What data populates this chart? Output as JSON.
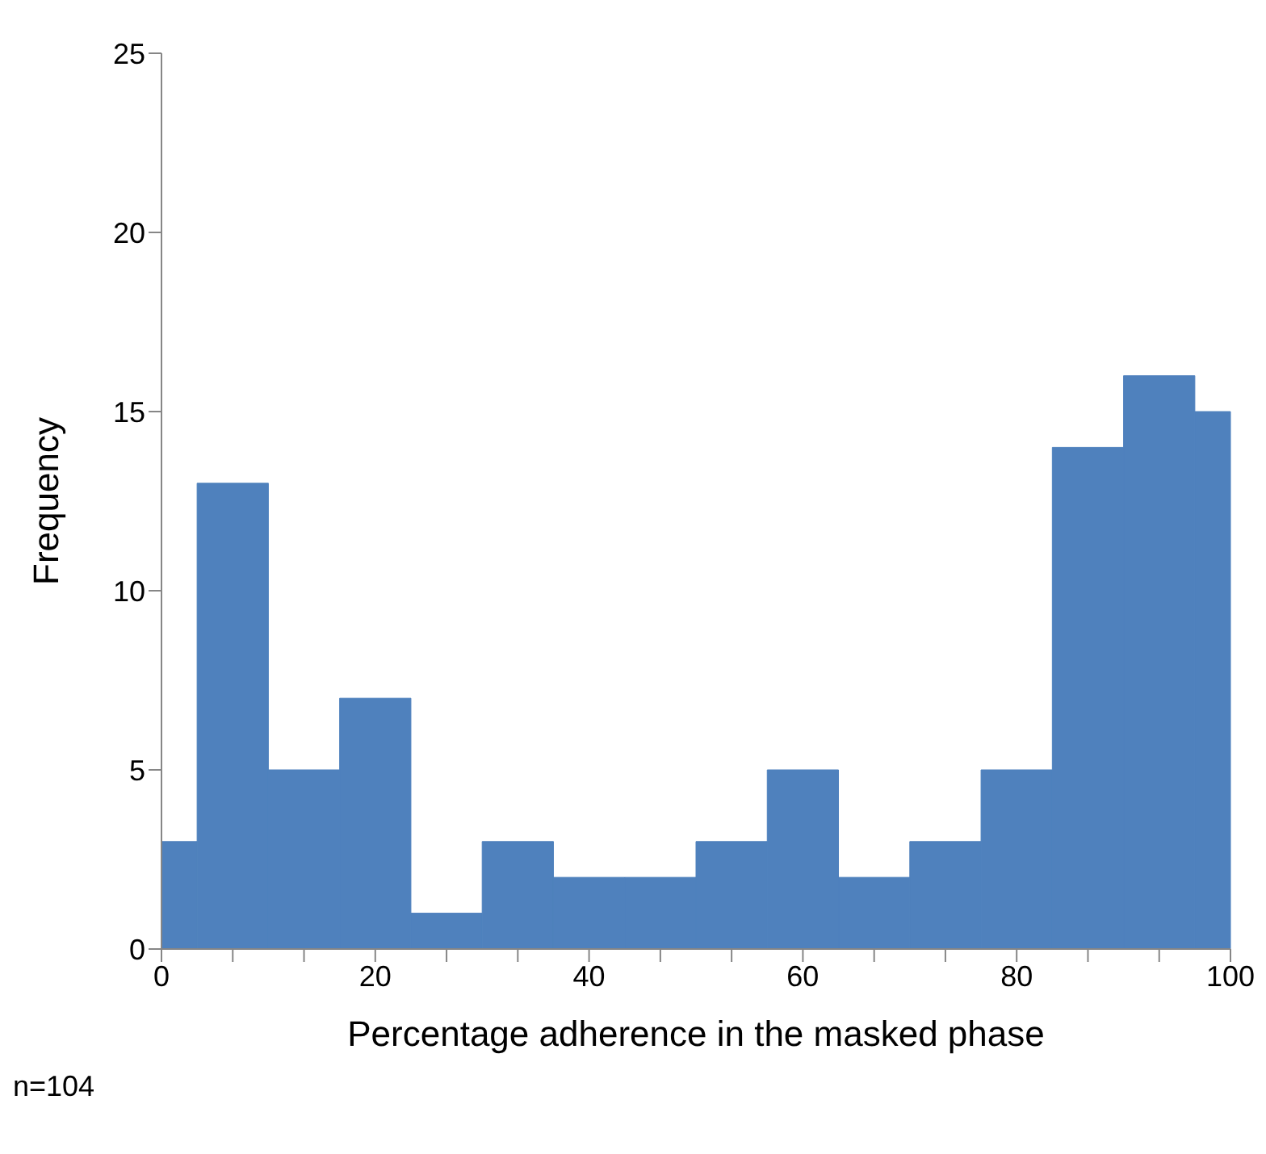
{
  "chart_data": {
    "type": "histogram",
    "xlabel": "Percentage adherence in the masked phase",
    "ylabel": "Frequency",
    "annotations": [
      "n=104"
    ],
    "bins": [
      0,
      3.333,
      10,
      16.667,
      23.333,
      30,
      36.667,
      43.333,
      50,
      56.667,
      63.333,
      70,
      76.667,
      83.333,
      90,
      96.667,
      100
    ],
    "values": [
      3,
      13,
      5,
      7,
      1,
      3,
      2,
      2,
      3,
      5,
      2,
      3,
      5,
      14,
      16,
      15
    ],
    "color": "#4f81bd",
    "xlim": [
      0,
      100
    ],
    "xticks": [
      0,
      {
        "value": 6.667,
        "label": null
      },
      {
        "value": 13.333,
        "label": null
      },
      20,
      {
        "value": 26.667,
        "label": null
      },
      {
        "value": 33.333,
        "label": null
      },
      40,
      {
        "value": 46.667,
        "label": null
      },
      {
        "value": 53.333,
        "label": null
      },
      60,
      {
        "value": 66.667,
        "label": null
      },
      {
        "value": 73.333,
        "label": null
      },
      80,
      {
        "value": 86.667,
        "label": null
      },
      {
        "value": 93.333,
        "label": null
      },
      100
    ],
    "ylim": [
      0,
      25
    ],
    "yticks": [
      0,
      5,
      10,
      15,
      20,
      25
    ],
    "grid": false
  }
}
